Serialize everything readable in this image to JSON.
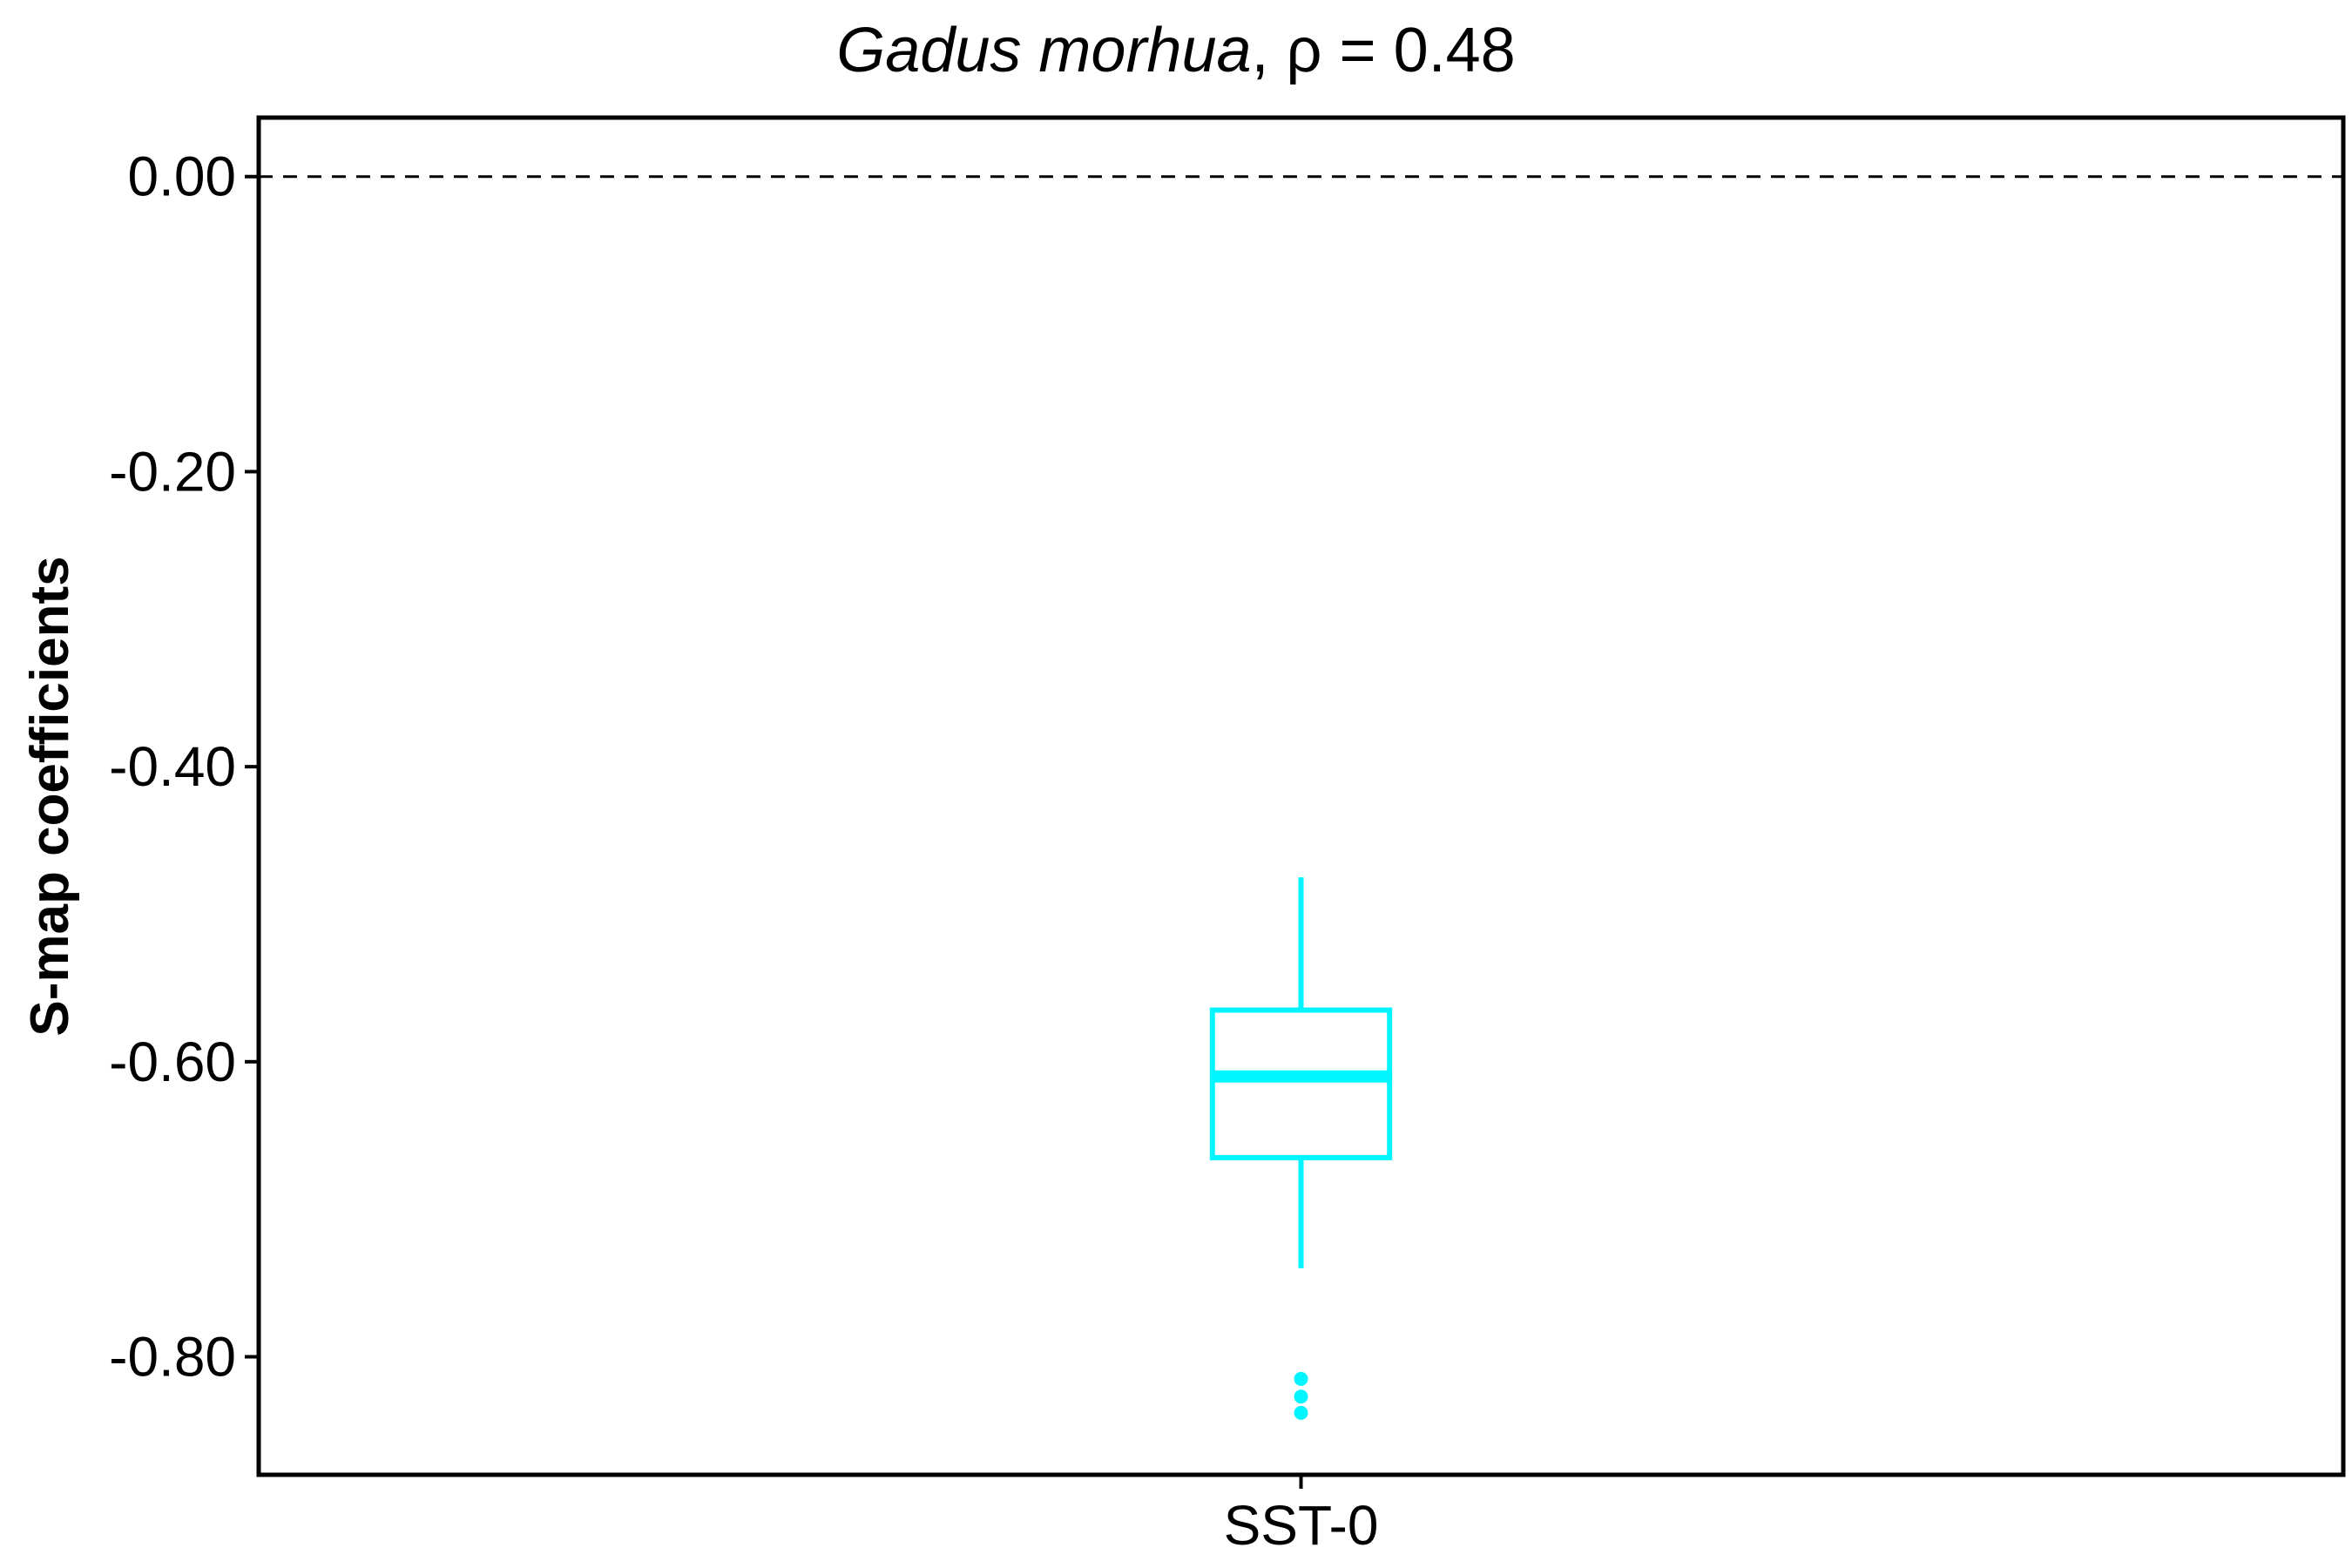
{
  "chart_data": {
    "type": "box",
    "title_species": "Gadus morhua",
    "title_stat": ", ρ = 0.48",
    "ylabel": "S-map coefficients",
    "xlabel": "",
    "categories": [
      "SST-0"
    ],
    "ylim": [
      -0.88,
      0.04
    ],
    "yticks": [
      0.0,
      -0.2,
      -0.4,
      -0.6,
      -0.8
    ],
    "ytick_labels": [
      "0.00",
      "-0.20",
      "-0.40",
      "-0.60",
      "-0.80"
    ],
    "reference_line": 0.0,
    "boxes": [
      {
        "category": "SST-0",
        "whisker_high": -0.475,
        "q3": -0.565,
        "median": -0.61,
        "q1": -0.665,
        "whisker_low": -0.74,
        "outliers": [
          -0.815,
          -0.827,
          -0.838
        ]
      }
    ],
    "colors": {
      "box": "#00f5ff",
      "axis": "#000000"
    }
  }
}
